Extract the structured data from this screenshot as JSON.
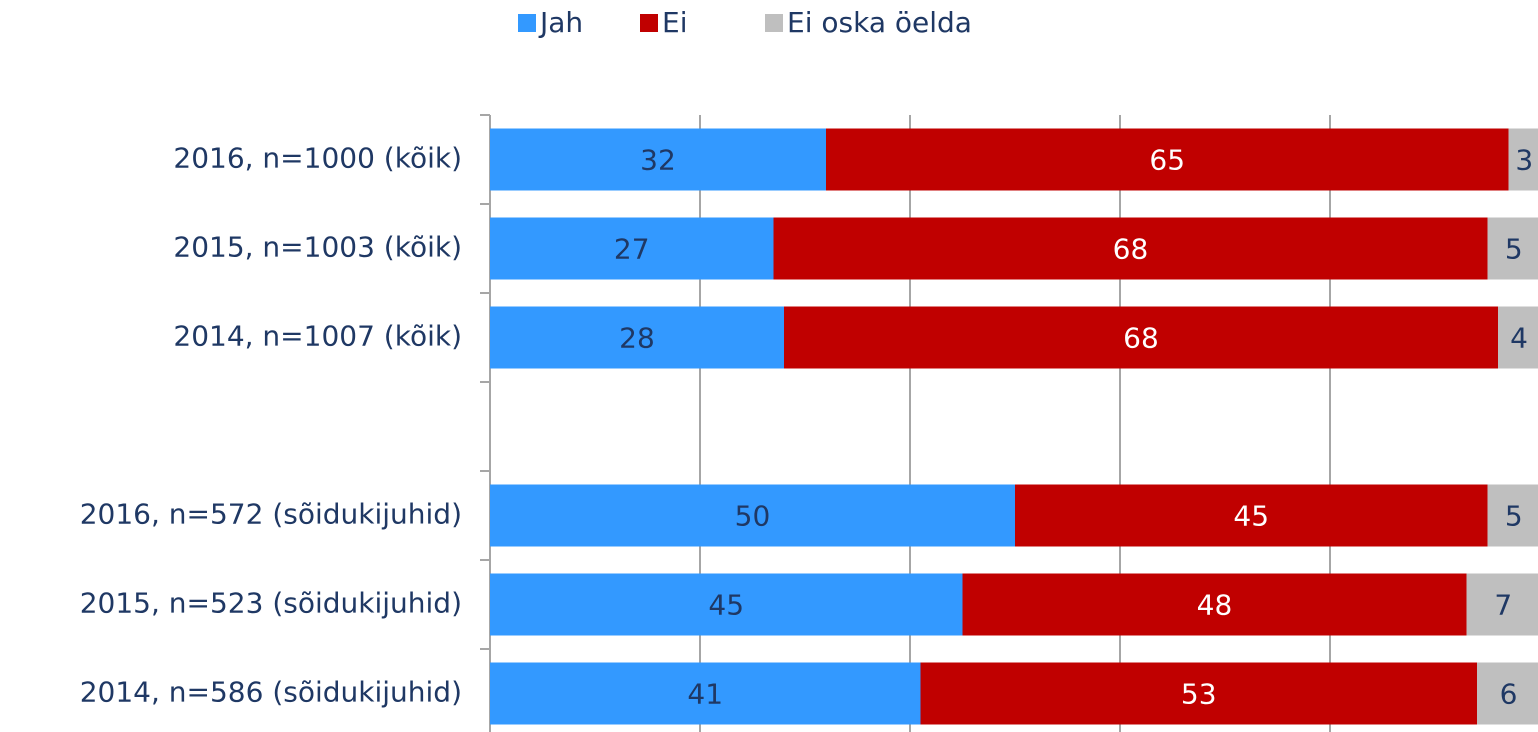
{
  "chart_data": {
    "type": "stacked-bar-horizontal",
    "categories": [
      "2016, n=1000 (kõik)",
      "2015, n=1003 (kõik)",
      "2014, n=1007 (kõik)",
      null,
      "2016, n=572 (sõidukijuhid)",
      "2015, n=523 (sõidukijuhid)",
      "2014, n=586 (sõidukijuhid)"
    ],
    "series": [
      {
        "name": "Jah",
        "color": "#3399ff",
        "values": [
          32,
          27,
          28,
          null,
          50,
          45,
          41
        ]
      },
      {
        "name": "Ei",
        "color": "#c00000",
        "values": [
          65,
          68,
          68,
          null,
          45,
          48,
          53
        ]
      },
      {
        "name": "Ei oska öelda",
        "color": "#bfbfbf",
        "values": [
          3,
          5,
          4,
          null,
          5,
          7,
          6
        ]
      }
    ],
    "xlim": [
      0,
      100
    ],
    "xticks": [
      0,
      20,
      40,
      60,
      80,
      100
    ],
    "grid": true,
    "legend": "top"
  }
}
